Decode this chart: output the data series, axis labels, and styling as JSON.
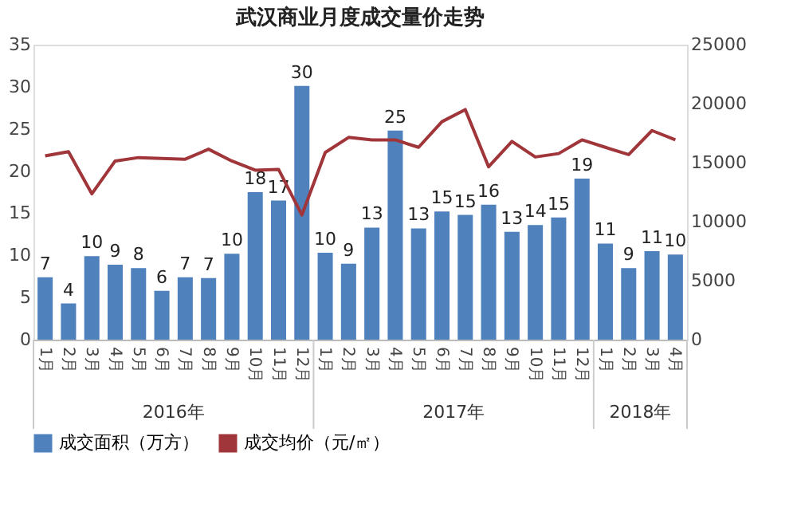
{
  "chart_data": {
    "type": "bar",
    "title": "武汉商业月度成交量价走势",
    "categories": [
      "1月",
      "2月",
      "3月",
      "4月",
      "5月",
      "6月",
      "7月",
      "8月",
      "9月",
      "10月",
      "11月",
      "12月",
      "1月",
      "2月",
      "3月",
      "4月",
      "5月",
      "6月",
      "7月",
      "8月",
      "9月",
      "10月",
      "11月",
      "12月",
      "1月",
      "2月",
      "3月",
      "4月"
    ],
    "annotations": [
      "2016年",
      "2017年",
      "2018年"
    ],
    "series": [
      {
        "name": "成交面积（万方）",
        "color": "#4f81bd",
        "values": [
          7.4,
          4.3,
          9.9,
          8.9,
          8.5,
          5.8,
          7.4,
          7.3,
          10.2,
          17.5,
          16.5,
          30.1,
          10.3,
          9.0,
          13.3,
          24.8,
          13.2,
          15.2,
          14.8,
          16.0,
          12.8,
          13.6,
          14.5,
          19.1,
          11.4,
          8.5,
          10.5,
          10.1
        ],
        "value_labels": [
          "7",
          "4",
          "10",
          "9",
          "8",
          "6",
          "7",
          "7",
          "10",
          "18",
          "17",
          "30",
          "10",
          "9",
          "13",
          "25",
          "13",
          "15",
          "15",
          "16",
          "13",
          "14",
          "15",
          "19",
          "11",
          "9",
          "11",
          "10"
        ]
      },
      {
        "name": "成交均价（元/㎡）",
        "type": "line",
        "axis": "y2",
        "color": "#a0353a",
        "values": [
          15570,
          15930,
          12360,
          15140,
          15430,
          15360,
          15290,
          16140,
          15140,
          14360,
          14430,
          10570,
          15860,
          17140,
          16930,
          16930,
          16300,
          18470,
          19500,
          14650,
          16800,
          15480,
          15770,
          16930,
          16300,
          15680,
          17720,
          16930
        ]
      }
    ],
    "ylim": [
      0,
      35
    ],
    "yticks": [
      0,
      5,
      10,
      15,
      20,
      25,
      30,
      35
    ],
    "y2lim": [
      0,
      25000
    ],
    "y2ticks": [
      0,
      5000,
      10000,
      15000,
      20000,
      25000
    ],
    "grid": false,
    "legend": "bottom"
  }
}
